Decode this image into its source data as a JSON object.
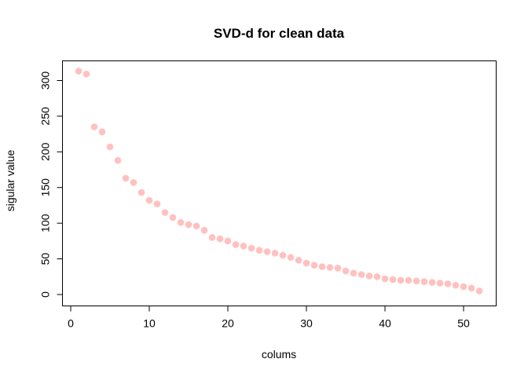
{
  "chart_data": {
    "type": "scatter",
    "title": "SVD-d for clean data",
    "xlabel": "colums",
    "ylabel": "sigular value",
    "xlim": [
      0,
      53
    ],
    "ylim": [
      0,
      315
    ],
    "xticks": [
      0,
      10,
      20,
      30,
      40,
      50
    ],
    "yticks": [
      0,
      50,
      100,
      150,
      200,
      250,
      300
    ],
    "grid": false,
    "legend": "none",
    "point_color": "#ffc0c0",
    "x": [
      1,
      2,
      3,
      4,
      5,
      6,
      7,
      8,
      9,
      10,
      11,
      12,
      13,
      14,
      15,
      16,
      17,
      18,
      19,
      20,
      21,
      22,
      23,
      24,
      25,
      26,
      27,
      28,
      29,
      30,
      31,
      32,
      33,
      34,
      35,
      36,
      37,
      38,
      39,
      40,
      41,
      42,
      43,
      44,
      45,
      46,
      47,
      48,
      49,
      50,
      51,
      52
    ],
    "y": [
      313,
      309,
      235,
      228,
      207,
      188,
      163,
      157,
      143,
      132,
      127,
      115,
      108,
      101,
      98,
      96,
      90,
      80,
      78,
      75,
      70,
      68,
      65,
      62,
      60,
      58,
      55,
      52,
      48,
      44,
      41,
      39,
      38,
      37,
      33,
      30,
      28,
      26,
      25,
      22,
      21,
      20,
      20,
      19,
      18,
      17,
      16,
      15,
      13,
      11,
      9,
      5
    ]
  }
}
